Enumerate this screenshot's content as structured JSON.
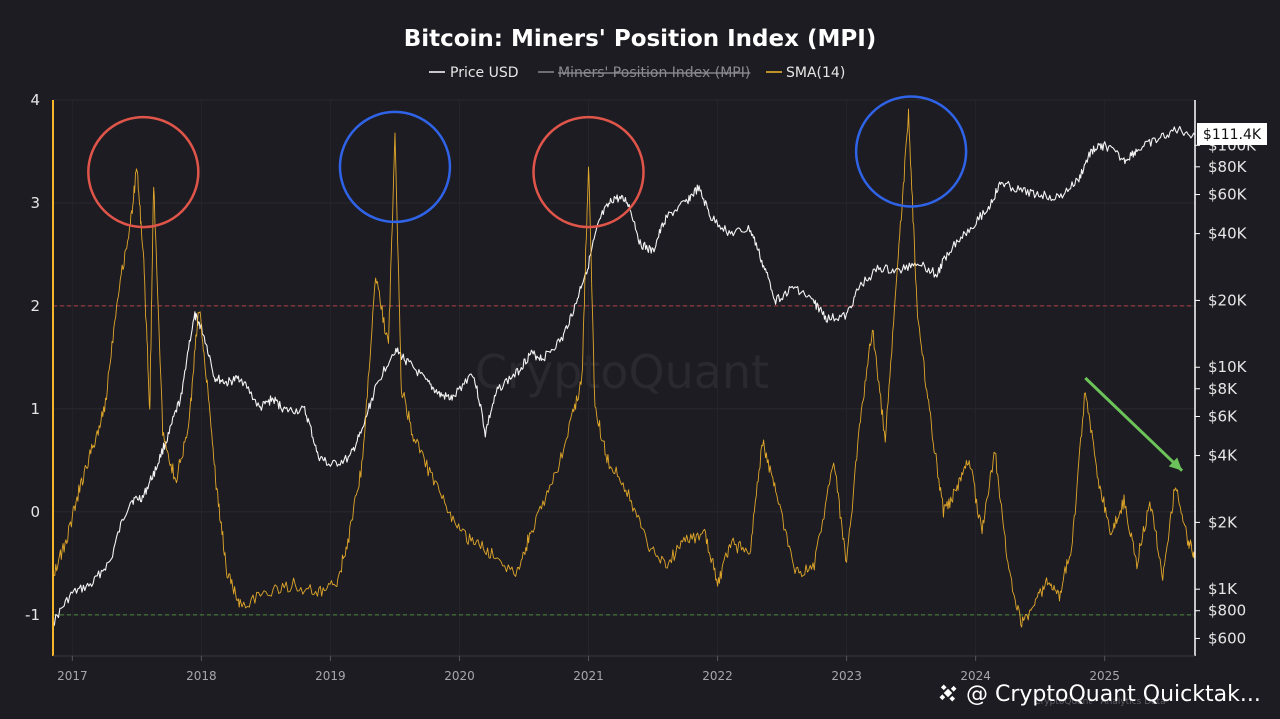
{
  "chart_data": {
    "type": "line",
    "title": "Bitcoin: Miners' Position Index (MPI)",
    "legend": [
      {
        "label": "Price USD",
        "color": "#ffffff",
        "strikethrough": false
      },
      {
        "label": "Miners' Position Index (MPI)",
        "color": "#8a8a8f",
        "strikethrough": true
      },
      {
        "label": "SMA(14)",
        "color": "#f5b62b",
        "strikethrough": false
      }
    ],
    "legend_position": "top-center",
    "x_ticks": [
      "2017",
      "2018",
      "2019",
      "2020",
      "2021",
      "2022",
      "2023",
      "2024",
      "2025"
    ],
    "x_range": [
      2016.85,
      2025.7
    ],
    "left_axis": {
      "ticks": [
        "4",
        "3",
        "2",
        "1",
        "0",
        "-1"
      ],
      "range": [
        -1.4,
        4.0
      ],
      "color": "#f5b62b"
    },
    "right_axis": {
      "scale": "log",
      "ticks": [
        "$100K",
        "$80K",
        "$60K",
        "$40K",
        "$20K",
        "$10K",
        "$8K",
        "$6K",
        "$4K",
        "$2K",
        "$1K",
        "$800",
        "$600"
      ],
      "tick_values": [
        100000,
        80000,
        60000,
        40000,
        20000,
        10000,
        8000,
        6000,
        4000,
        2000,
        1000,
        800,
        600
      ],
      "range": [
        500,
        160000
      ],
      "current_price_label": "$111.4K"
    },
    "reference_lines": [
      {
        "y": 2,
        "color": "#b04040"
      },
      {
        "y": -1,
        "color": "#4a8a3a"
      }
    ],
    "grid": true,
    "series": [
      {
        "name": "Price USD",
        "color": "#ffffff",
        "points": [
          [
            2016.85,
            700
          ],
          [
            2017.0,
            960
          ],
          [
            2017.15,
            1050
          ],
          [
            2017.3,
            1350
          ],
          [
            2017.45,
            2500
          ],
          [
            2017.55,
            2600
          ],
          [
            2017.65,
            3500
          ],
          [
            2017.75,
            5000
          ],
          [
            2017.85,
            7500
          ],
          [
            2017.95,
            17000
          ],
          [
            2018.0,
            15000
          ],
          [
            2018.1,
            9000
          ],
          [
            2018.2,
            8500
          ],
          [
            2018.3,
            9000
          ],
          [
            2018.45,
            6500
          ],
          [
            2018.55,
            7200
          ],
          [
            2018.65,
            6400
          ],
          [
            2018.8,
            6400
          ],
          [
            2018.9,
            4000
          ],
          [
            2019.0,
            3600
          ],
          [
            2019.15,
            3900
          ],
          [
            2019.25,
            5200
          ],
          [
            2019.35,
            8000
          ],
          [
            2019.5,
            12000
          ],
          [
            2019.6,
            10500
          ],
          [
            2019.75,
            8500
          ],
          [
            2019.85,
            7500
          ],
          [
            2019.95,
            7200
          ],
          [
            2020.1,
            9500
          ],
          [
            2020.2,
            5000
          ],
          [
            2020.3,
            8000
          ],
          [
            2020.45,
            9500
          ],
          [
            2020.55,
            11500
          ],
          [
            2020.65,
            11000
          ],
          [
            2020.8,
            13500
          ],
          [
            2020.9,
            19000
          ],
          [
            2021.0,
            29000
          ],
          [
            2021.1,
            48000
          ],
          [
            2021.2,
            58000
          ],
          [
            2021.3,
            56000
          ],
          [
            2021.4,
            36000
          ],
          [
            2021.5,
            33000
          ],
          [
            2021.6,
            47000
          ],
          [
            2021.75,
            55000
          ],
          [
            2021.85,
            64000
          ],
          [
            2021.95,
            47000
          ],
          [
            2022.1,
            40000
          ],
          [
            2022.25,
            42000
          ],
          [
            2022.35,
            29000
          ],
          [
            2022.45,
            20000
          ],
          [
            2022.6,
            23000
          ],
          [
            2022.75,
            19500
          ],
          [
            2022.85,
            16500
          ],
          [
            2023.0,
            17000
          ],
          [
            2023.1,
            23000
          ],
          [
            2023.25,
            28000
          ],
          [
            2023.4,
            27000
          ],
          [
            2023.55,
            30000
          ],
          [
            2023.7,
            26000
          ],
          [
            2023.8,
            34000
          ],
          [
            2023.95,
            42000
          ],
          [
            2024.1,
            52000
          ],
          [
            2024.2,
            68000
          ],
          [
            2024.35,
            62000
          ],
          [
            2024.5,
            60000
          ],
          [
            2024.65,
            58000
          ],
          [
            2024.8,
            70000
          ],
          [
            2024.9,
            95000
          ],
          [
            2025.0,
            100000
          ],
          [
            2025.15,
            85000
          ],
          [
            2025.25,
            95000
          ],
          [
            2025.4,
            105000
          ],
          [
            2025.55,
            118000
          ],
          [
            2025.7,
            111400
          ]
        ]
      },
      {
        "name": "SMA(14)",
        "color": "#f5b62b",
        "points": [
          [
            2016.85,
            -0.6
          ],
          [
            2016.95,
            -0.3
          ],
          [
            2017.05,
            0.2
          ],
          [
            2017.15,
            0.6
          ],
          [
            2017.25,
            1.0
          ],
          [
            2017.35,
            2.1
          ],
          [
            2017.45,
            2.8
          ],
          [
            2017.5,
            3.35
          ],
          [
            2017.55,
            2.5
          ],
          [
            2017.6,
            1.0
          ],
          [
            2017.63,
            3.2
          ],
          [
            2017.7,
            0.8
          ],
          [
            2017.8,
            0.3
          ],
          [
            2017.9,
            0.8
          ],
          [
            2017.98,
            2.0
          ],
          [
            2018.05,
            1.2
          ],
          [
            2018.12,
            0.2
          ],
          [
            2018.2,
            -0.6
          ],
          [
            2018.3,
            -0.9
          ],
          [
            2018.5,
            -0.8
          ],
          [
            2018.7,
            -0.7
          ],
          [
            2018.9,
            -0.8
          ],
          [
            2019.05,
            -0.7
          ],
          [
            2019.15,
            -0.2
          ],
          [
            2019.25,
            0.5
          ],
          [
            2019.35,
            2.3
          ],
          [
            2019.45,
            1.6
          ],
          [
            2019.5,
            3.7
          ],
          [
            2019.55,
            1.2
          ],
          [
            2019.65,
            0.7
          ],
          [
            2019.8,
            0.3
          ],
          [
            2019.95,
            -0.1
          ],
          [
            2020.1,
            -0.3
          ],
          [
            2020.25,
            -0.4
          ],
          [
            2020.45,
            -0.6
          ],
          [
            2020.55,
            -0.2
          ],
          [
            2020.7,
            0.2
          ],
          [
            2020.85,
            0.8
          ],
          [
            2020.95,
            1.3
          ],
          [
            2021.0,
            3.4
          ],
          [
            2021.05,
            1.0
          ],
          [
            2021.15,
            0.5
          ],
          [
            2021.3,
            0.2
          ],
          [
            2021.45,
            -0.3
          ],
          [
            2021.6,
            -0.5
          ],
          [
            2021.75,
            -0.3
          ],
          [
            2021.9,
            -0.2
          ],
          [
            2022.0,
            -0.7
          ],
          [
            2022.1,
            -0.3
          ],
          [
            2022.25,
            -0.4
          ],
          [
            2022.35,
            0.7
          ],
          [
            2022.45,
            0.2
          ],
          [
            2022.6,
            -0.6
          ],
          [
            2022.75,
            -0.5
          ],
          [
            2022.9,
            0.5
          ],
          [
            2023.0,
            -0.5
          ],
          [
            2023.1,
            0.8
          ],
          [
            2023.2,
            1.8
          ],
          [
            2023.3,
            0.7
          ],
          [
            2023.4,
            2.5
          ],
          [
            2023.48,
            3.85
          ],
          [
            2023.55,
            1.9
          ],
          [
            2023.65,
            0.9
          ],
          [
            2023.75,
            0.0
          ],
          [
            2023.85,
            0.2
          ],
          [
            2023.95,
            0.5
          ],
          [
            2024.05,
            -0.2
          ],
          [
            2024.15,
            0.6
          ],
          [
            2024.25,
            -0.5
          ],
          [
            2024.35,
            -1.1
          ],
          [
            2024.45,
            -0.9
          ],
          [
            2024.55,
            -0.7
          ],
          [
            2024.65,
            -0.8
          ],
          [
            2024.75,
            -0.3
          ],
          [
            2024.85,
            1.2
          ],
          [
            2024.95,
            0.3
          ],
          [
            2025.05,
            -0.2
          ],
          [
            2025.15,
            0.1
          ],
          [
            2025.25,
            -0.5
          ],
          [
            2025.35,
            0.1
          ],
          [
            2025.45,
            -0.6
          ],
          [
            2025.55,
            0.3
          ],
          [
            2025.65,
            -0.3
          ],
          [
            2025.7,
            -0.4
          ]
        ]
      }
    ],
    "annotations": [
      {
        "type": "circle",
        "color": "#e0554a",
        "x": 2017.55,
        "y": 3.3
      },
      {
        "type": "circle",
        "color": "#2f63e8",
        "x": 2019.5,
        "y": 3.35
      },
      {
        "type": "circle",
        "color": "#e0554a",
        "x": 2021.0,
        "y": 3.3
      },
      {
        "type": "circle",
        "color": "#2f63e8",
        "x": 2023.5,
        "y": 3.5
      },
      {
        "type": "arrow",
        "color": "#6cc35a",
        "from": [
          2024.85,
          1.3
        ],
        "to": [
          2025.6,
          0.4
        ]
      }
    ],
    "watermark": "CryptoQuant",
    "credit": "@ CryptoQuant Quicktak...",
    "credit_small": "CryptoQuant · Analytics Data"
  }
}
